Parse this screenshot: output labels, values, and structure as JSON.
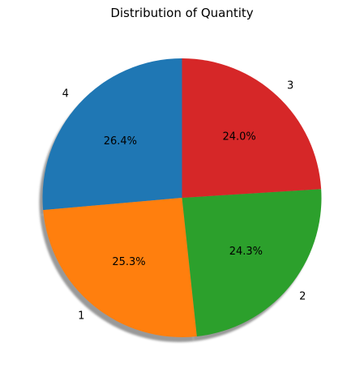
{
  "chart_data": {
    "type": "pie",
    "title": "Distribution of Quantity",
    "labels": [
      "4",
      "1",
      "2",
      "3"
    ],
    "values": [
      26.4,
      25.3,
      24.3,
      24.0
    ],
    "percent_labels": [
      "26.4%",
      "25.3%",
      "24.3%",
      "24.0%"
    ],
    "colors": [
      "#1f77b4",
      "#ff7f0e",
      "#2ca02c",
      "#d62728"
    ],
    "start_angle_deg": 90,
    "direction": "counterclockwise",
    "shadow": true,
    "legend": "none"
  }
}
